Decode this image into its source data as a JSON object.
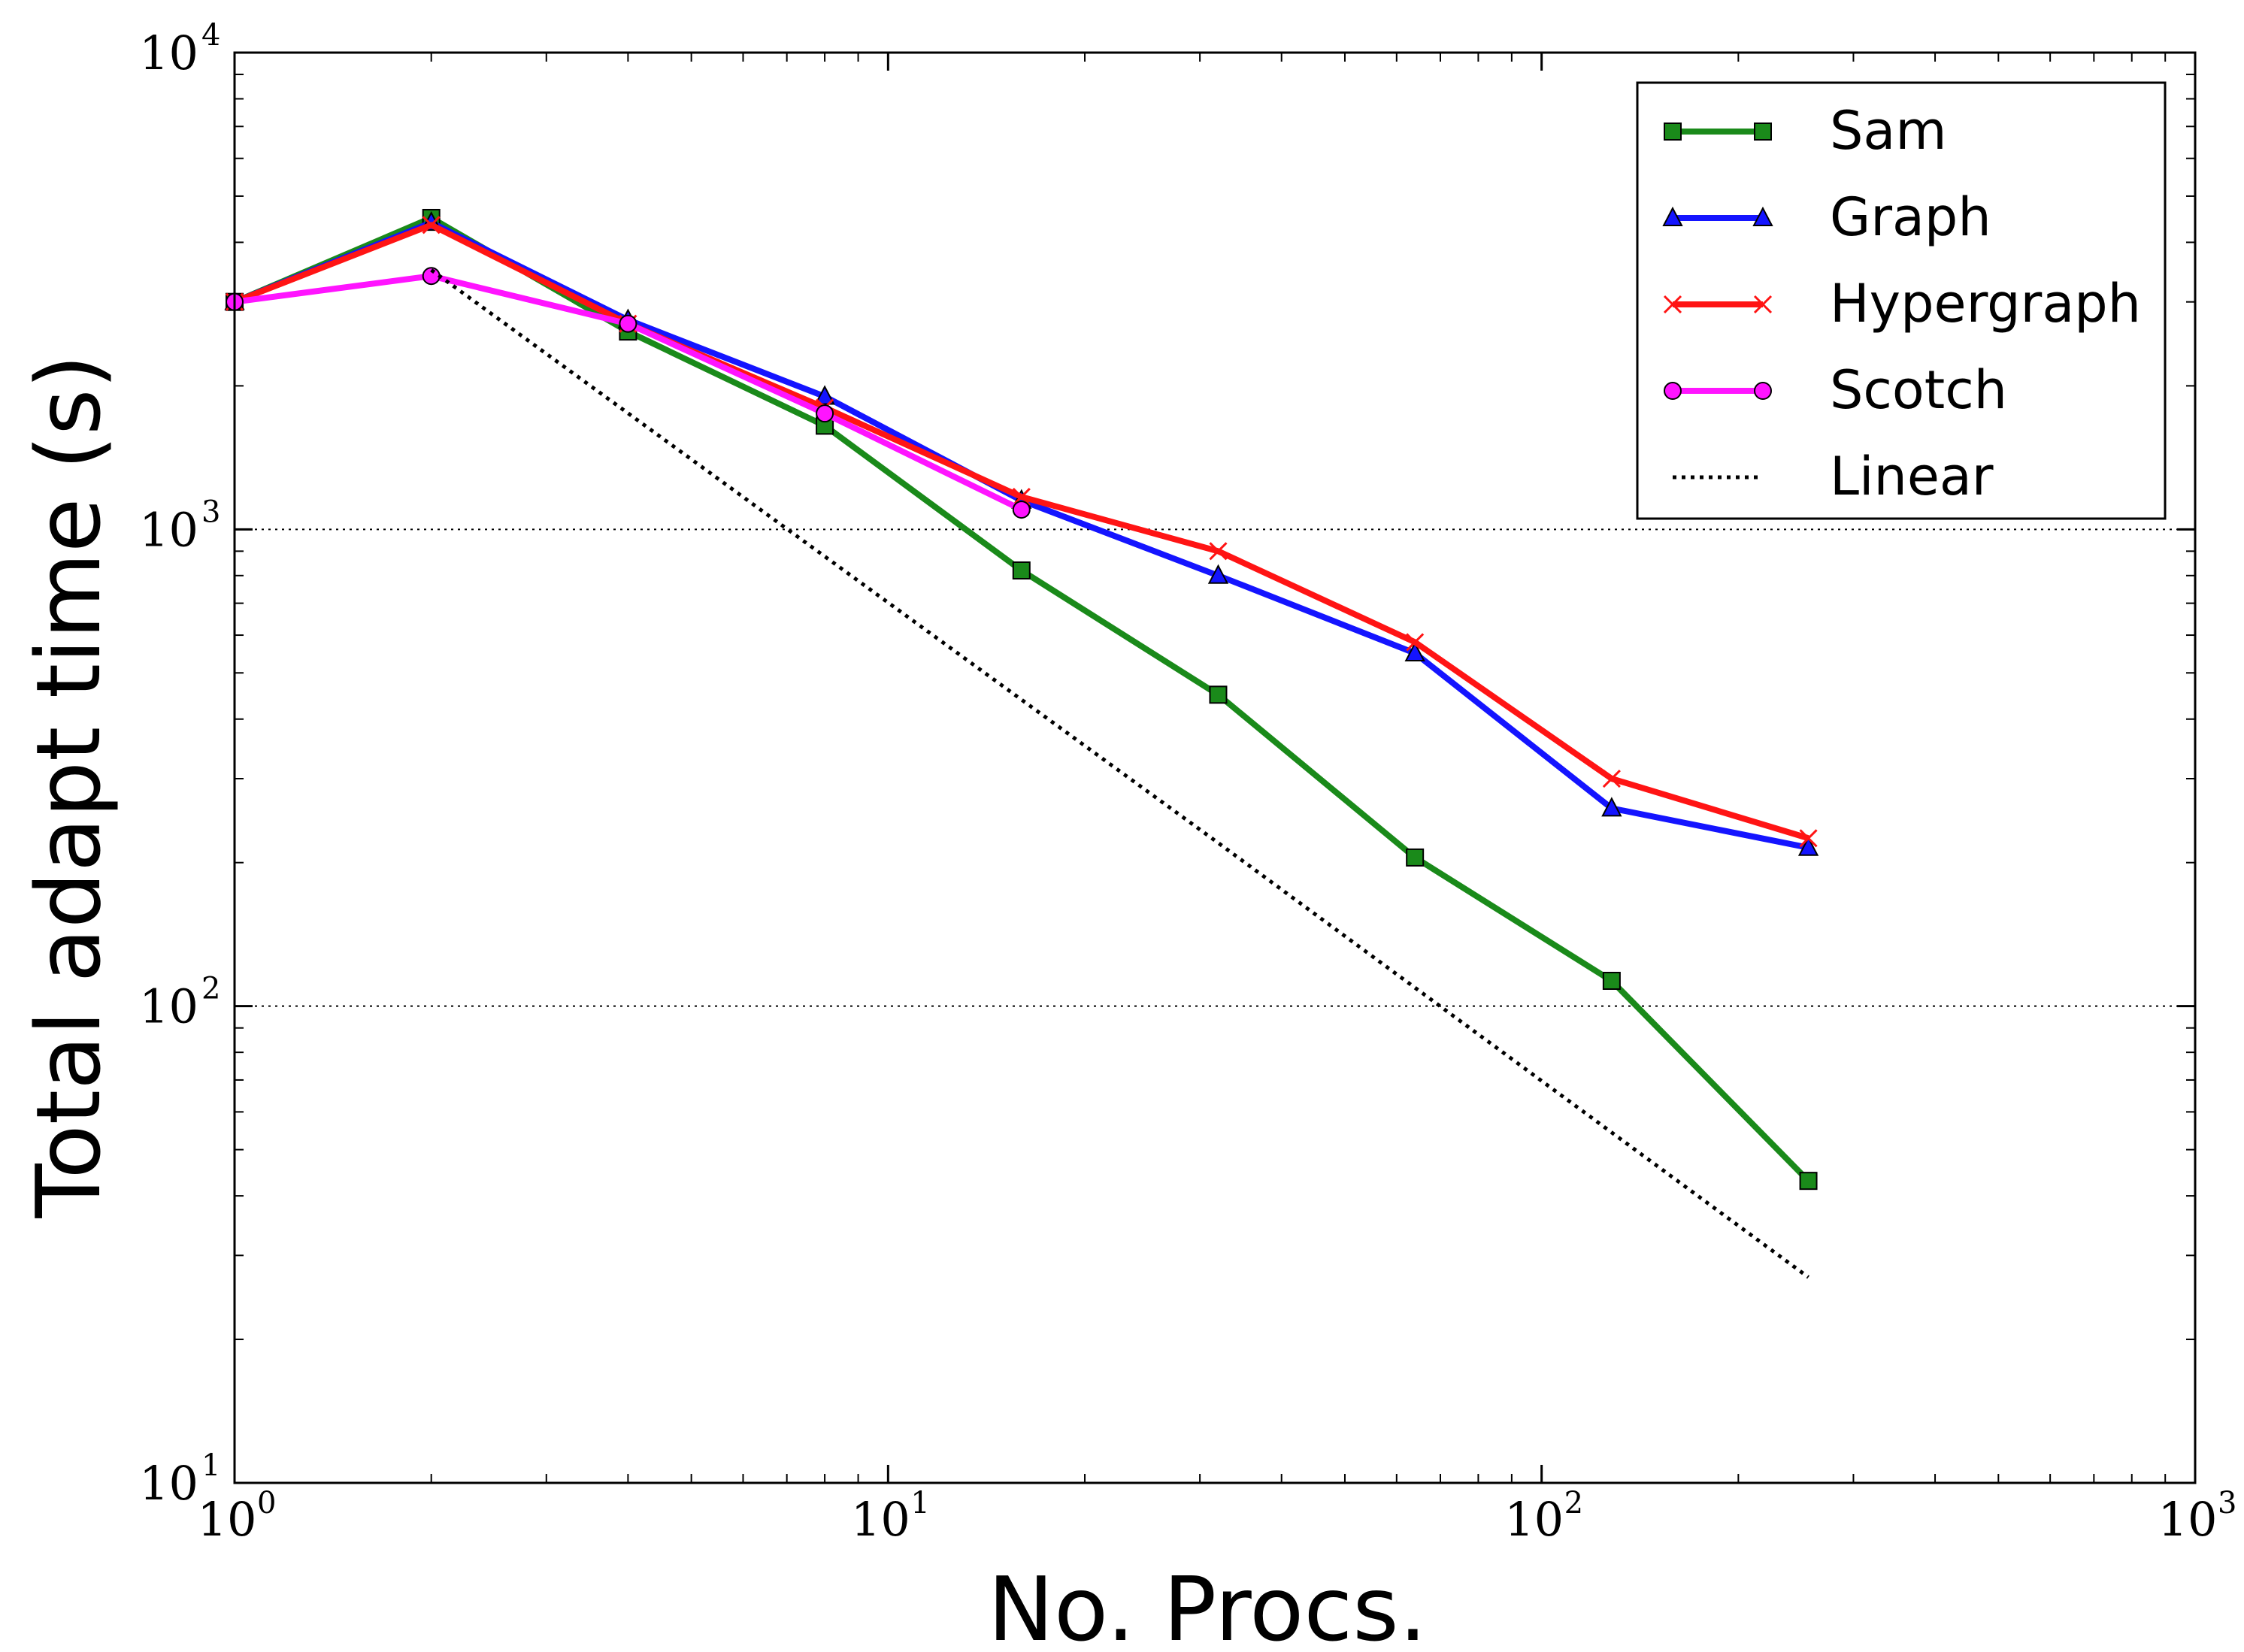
{
  "colors": {
    "Sam": "#1a8a1a",
    "Graph": "#1414ff",
    "Hypergraph": "#ff1414",
    "Scotch": "#ff14ff",
    "Linear": "#000000"
  },
  "chart_data": {
    "type": "line",
    "xlabel": "No. Procs.",
    "ylabel": "Total adapt time (s)",
    "xscale": "log",
    "yscale": "log",
    "xlim": [
      1,
      1000
    ],
    "ylim": [
      10,
      10000
    ],
    "grid": "y-major dotted",
    "legend_position": "top-right",
    "x_ticks": [
      {
        "base": "10",
        "exp": "0"
      },
      {
        "base": "10",
        "exp": "1"
      },
      {
        "base": "10",
        "exp": "2"
      },
      {
        "base": "10",
        "exp": "3"
      }
    ],
    "y_ticks": [
      {
        "base": "10",
        "exp": "1"
      },
      {
        "base": "10",
        "exp": "2"
      },
      {
        "base": "10",
        "exp": "3"
      },
      {
        "base": "10",
        "exp": "4"
      }
    ],
    "series": [
      {
        "name": "Sam",
        "marker": "square",
        "x": [
          1,
          2,
          4,
          8,
          16,
          32,
          64,
          128,
          256
        ],
        "y": [
          3000,
          4500,
          2600,
          1650,
          820,
          450,
          205,
          113,
          43
        ]
      },
      {
        "name": "Graph",
        "marker": "triangle",
        "x": [
          1,
          2,
          4,
          8,
          16,
          32,
          64,
          128,
          256
        ],
        "y": [
          3000,
          4400,
          2750,
          1900,
          1150,
          800,
          550,
          260,
          215
        ]
      },
      {
        "name": "Hypergraph",
        "marker": "x",
        "x": [
          1,
          2,
          4,
          8,
          16,
          32,
          64,
          128,
          256
        ],
        "y": [
          3000,
          4350,
          2700,
          1800,
          1170,
          900,
          580,
          300,
          225
        ]
      },
      {
        "name": "Scotch",
        "marker": "circle",
        "x": [
          1,
          2,
          4,
          8,
          16
        ],
        "y": [
          3000,
          3400,
          2700,
          1750,
          1100
        ]
      },
      {
        "name": "Linear",
        "marker": "none",
        "style": "dotted",
        "x": [
          2,
          32,
          256
        ],
        "y": [
          3500,
          220,
          27
        ]
      }
    ]
  }
}
